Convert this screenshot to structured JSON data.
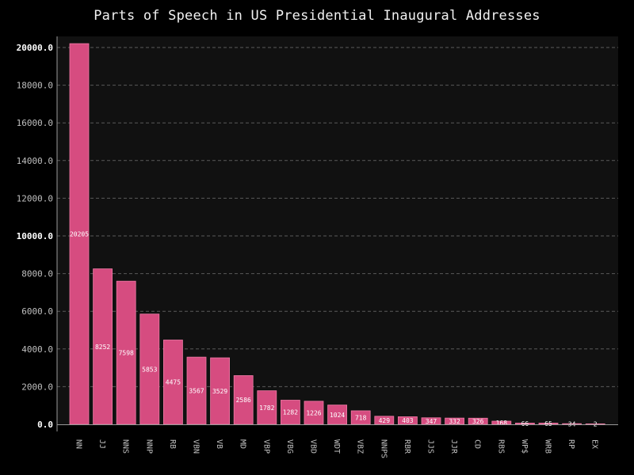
{
  "chart_data": {
    "type": "bar",
    "title": "Parts of Speech in US Presidential Inaugural Addresses",
    "xlabel": "",
    "ylabel": "",
    "categories": [
      "NN",
      "JJ",
      "NNS",
      "NNP",
      "RB",
      "VBN",
      "VB",
      "MD",
      "VBP",
      "VBG",
      "VBD",
      "WDT",
      "VBZ",
      "NNPS",
      "RBR",
      "JJS",
      "JJR",
      "CD",
      "RBS",
      "WP$",
      "WRB",
      "RP",
      "EX"
    ],
    "values": [
      20205,
      8252,
      7598,
      5853,
      4475,
      3567,
      3529,
      2586,
      1782,
      1282,
      1226,
      1024,
      718,
      429,
      403,
      347,
      332,
      326,
      168,
      66,
      65,
      34,
      2
    ],
    "data_labels": [
      "20205",
      "8252",
      "7598",
      "5853",
      "4475",
      "3567",
      "3529",
      "2586",
      "1782",
      "1282",
      "1226",
      "1024",
      "718",
      "429",
      "403",
      "347",
      "332",
      "326",
      "168",
      "66",
      "65",
      "34",
      "2"
    ],
    "ylim": [
      0,
      20500
    ],
    "yticks": [
      0,
      2000,
      4000,
      6000,
      8000,
      10000,
      12000,
      14000,
      16000,
      18000,
      20000
    ],
    "ytick_labels": [
      "0.0",
      "2000.0",
      "4000.0",
      "6000.0",
      "8000.0",
      "10000.0",
      "12000.0",
      "14000.0",
      "16000.0",
      "18000.0",
      "20000.0"
    ],
    "grid": true,
    "legend": "none",
    "colors": {
      "background": "#000000",
      "plot_background": "#111111",
      "bar_fill": "#d64c80",
      "bar_edge": "#f07aa6",
      "grid": "#5a5a5a",
      "axis": "#9a9a9a",
      "title": "#f2f2f2",
      "tick_label": "#bfbfbf",
      "tick_label_bold": "#ffffff",
      "data_label": "#ffffff"
    }
  }
}
